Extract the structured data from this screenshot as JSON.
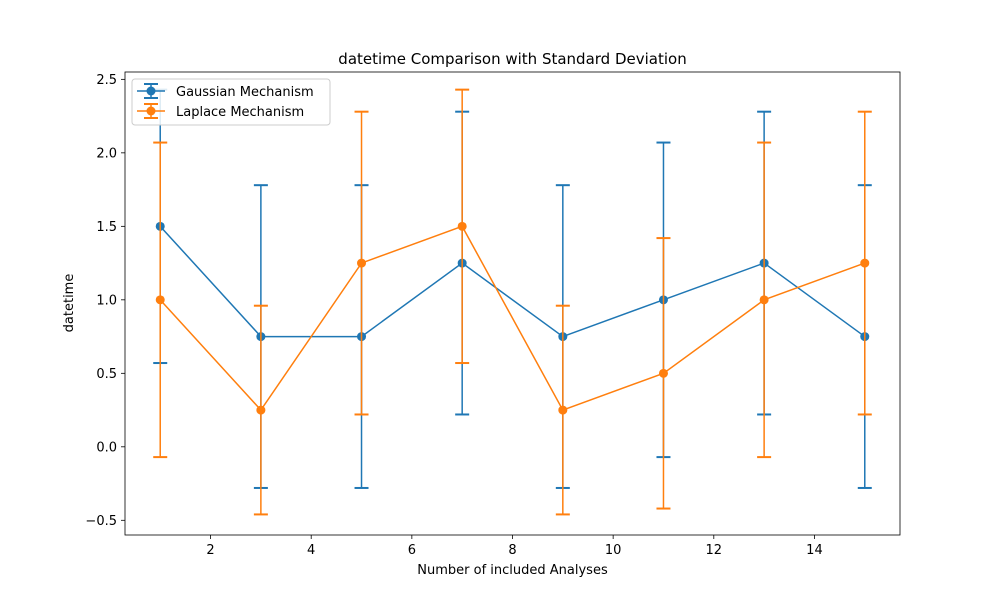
{
  "chart_data": {
    "type": "line",
    "title": "datetime Comparison with Standard Deviation",
    "xlabel": "Number of included Analyses",
    "ylabel": "datetime",
    "xlim": [
      0.3,
      15.7
    ],
    "ylim": [
      -0.6,
      2.55
    ],
    "xticks": [
      2,
      4,
      6,
      8,
      10,
      12,
      14
    ],
    "yticks": [
      -0.5,
      0.0,
      0.5,
      1.0,
      1.5,
      2.0,
      2.5
    ],
    "xtick_labels": [
      "2",
      "4",
      "6",
      "8",
      "10",
      "12",
      "14"
    ],
    "ytick_labels": [
      "−0.5",
      "0.0",
      "0.5",
      "1.0",
      "1.5",
      "2.0",
      "2.5"
    ],
    "grid": false,
    "legend_position": "upper-left",
    "x": [
      1,
      3,
      5,
      7,
      9,
      11,
      13,
      15
    ],
    "series": [
      {
        "name": "Gaussian Mechanism",
        "color": "#1f77b4",
        "values": [
          1.5,
          0.75,
          0.75,
          1.25,
          0.75,
          1.0,
          1.25,
          0.75
        ],
        "std": [
          0.93,
          1.03,
          1.03,
          1.03,
          1.03,
          1.07,
          1.03,
          1.03
        ]
      },
      {
        "name": "Laplace Mechanism",
        "color": "#ff7f0e",
        "values": [
          1.0,
          0.25,
          1.25,
          1.5,
          0.25,
          0.5,
          1.0,
          1.25
        ],
        "std": [
          1.07,
          0.71,
          1.03,
          0.93,
          0.71,
          0.92,
          1.07,
          1.03
        ]
      }
    ]
  }
}
